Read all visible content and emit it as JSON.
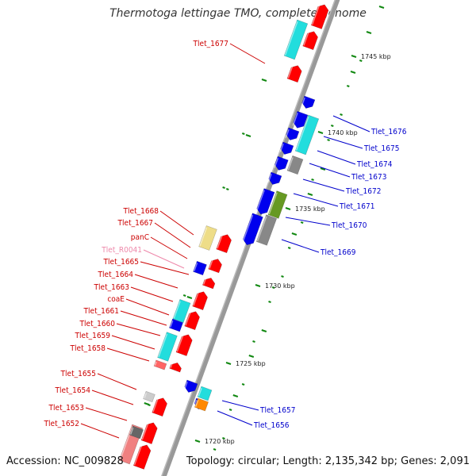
{
  "title": "Thermotoga lettingae TMO, complete genome",
  "footer": {
    "accession": "Accession: NC_009828",
    "stats": "Topology: circular; Length: 2,135,342 bp; Genes: 2,091"
  },
  "colors": {
    "cds_red": "#ff0000",
    "blue": "#0000ee",
    "cyan": "#22dddd",
    "olive": "#669922",
    "yellow_tan": "#eedd88",
    "orange": "#ff8800",
    "grey": "#888888",
    "light_grey": "#cccccc",
    "pink_label": "#ee88aa",
    "label_red": "#cc0000",
    "label_blue": "#0000cc",
    "tick_green": "#118811"
  },
  "scale_marks": [
    "1720 kbp",
    "1725 kbp",
    "1730 kbp",
    "1735 kbp",
    "1740 kbp",
    "1745 kbp"
  ],
  "labels_left": [
    {
      "text": "Tlet_1677",
      "color": "red"
    },
    {
      "text": "Tlet_1668",
      "color": "red"
    },
    {
      "text": "Tlet_1667",
      "color": "red"
    },
    {
      "text": "panC",
      "color": "red"
    },
    {
      "text": "Tlet_R0041",
      "color": "pink"
    },
    {
      "text": "Tlet_1665",
      "color": "red"
    },
    {
      "text": "Tlet_1664",
      "color": "red"
    },
    {
      "text": "Tlet_1663",
      "color": "red"
    },
    {
      "text": "coaE",
      "color": "red"
    },
    {
      "text": "Tlet_1661",
      "color": "red"
    },
    {
      "text": "Tlet_1660",
      "color": "red"
    },
    {
      "text": "Tlet_1659",
      "color": "red"
    },
    {
      "text": "Tlet_1658",
      "color": "red"
    },
    {
      "text": "Tlet_1655",
      "color": "red"
    },
    {
      "text": "Tlet_1654",
      "color": "red"
    },
    {
      "text": "Tlet_1653",
      "color": "red"
    },
    {
      "text": "Tlet_1652",
      "color": "red"
    }
  ],
  "labels_right": [
    {
      "text": "Tlet_1676",
      "color": "blue"
    },
    {
      "text": "Tlet_1675",
      "color": "blue"
    },
    {
      "text": "Tlet_1674",
      "color": "blue"
    },
    {
      "text": "Tlet_1673",
      "color": "blue"
    },
    {
      "text": "Tlet_1672",
      "color": "blue"
    },
    {
      "text": "Tlet_1671",
      "color": "blue"
    },
    {
      "text": "Tlet_1670",
      "color": "blue"
    },
    {
      "text": "Tlet_1669",
      "color": "blue"
    },
    {
      "text": "Tlet_1657",
      "color": "blue"
    },
    {
      "text": "Tlet_1656",
      "color": "blue"
    }
  ]
}
